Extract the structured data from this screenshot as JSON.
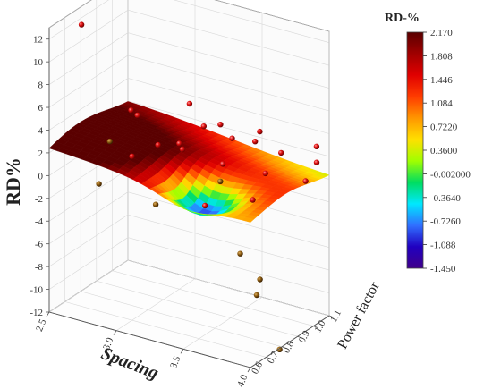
{
  "chart_data": {
    "type": "surface3d",
    "z_title": "RD%",
    "x_title": "Spacing",
    "y_title": "Power factor",
    "x_ticks": [
      "2.5",
      "3.0",
      "3.5",
      "4.0"
    ],
    "y_ticks": [
      "0.6",
      "0.7",
      "0.8",
      "0.9",
      "1.0",
      "1.1"
    ],
    "z_ticks": [
      "12",
      "10",
      "8",
      "6",
      "4",
      "2",
      "0",
      "-2",
      "-4",
      "-6",
      "-8",
      "-10",
      "-12"
    ],
    "xlim": [
      2.5,
      4.0
    ],
    "ylim": [
      0.6,
      1.1
    ],
    "zlim": [
      -12,
      13
    ],
    "legend": {
      "title": "RD-%",
      "labels": [
        "2.170",
        "1.808",
        "1.446",
        "1.084",
        "0.7220",
        "0.3600",
        "-0.002000",
        "-0.3640",
        "-0.7260",
        "-1.088",
        "-1.450"
      ],
      "colors": [
        "#5a0000",
        "#a00000",
        "#e00000",
        "#ff3c00",
        "#ff9600",
        "#ffe000",
        "#a0ff00",
        "#00dd60",
        "#00e8ff",
        "#3070ff",
        "#2000c0",
        "#40008a"
      ]
    },
    "grid": true,
    "points": [
      {
        "spacing": 2.6,
        "pf": 0.72,
        "rd": 12.5
      },
      {
        "spacing": 3.1,
        "pf": 0.78,
        "rd": 3.0
      },
      {
        "spacing": 2.7,
        "pf": 0.95,
        "rd": 3.2
      },
      {
        "spacing": 2.9,
        "pf": 0.82,
        "rd": 4.6
      },
      {
        "spacing": 3.0,
        "pf": 0.7,
        "rd": 2.4
      },
      {
        "spacing": 3.3,
        "pf": 0.9,
        "rd": 4.2
      },
      {
        "spacing": 3.6,
        "pf": 0.75,
        "rd": 6.7
      },
      {
        "spacing": 3.8,
        "pf": 0.8,
        "rd": 5.4
      },
      {
        "spacing": 3.9,
        "pf": 0.7,
        "rd": 1.5
      },
      {
        "spacing": 3.4,
        "pf": 0.92,
        "rd": -0.5
      },
      {
        "spacing": 3.0,
        "pf": 1.0,
        "rd": 0.8
      },
      {
        "spacing": 2.8,
        "pf": 0.66,
        "rd": -0.3
      },
      {
        "spacing": 3.7,
        "pf": 1.05,
        "rd": 1.8
      },
      {
        "spacing": 4.0,
        "pf": 0.95,
        "rd": 1.2
      },
      {
        "spacing": 3.5,
        "pf": 0.85,
        "rd": 2.0
      },
      {
        "spacing": 3.2,
        "pf": 0.68,
        "rd": -1.0
      },
      {
        "spacing": 3.9,
        "pf": 0.62,
        "rd": -2.5
      },
      {
        "spacing": 4.0,
        "pf": 0.66,
        "rd": -4.8
      },
      {
        "spacing": 4.0,
        "pf": 0.64,
        "rd": -6.0
      },
      {
        "spacing": 3.9,
        "pf": 0.78,
        "rd": 3.1
      },
      {
        "spacing": 2.6,
        "pf": 0.9,
        "rd": 0.6
      },
      {
        "spacing": 3.3,
        "pf": 1.08,
        "rd": 1.5
      },
      {
        "spacing": 3.6,
        "pf": 1.0,
        "rd": 3.8
      },
      {
        "spacing": 3.45,
        "pf": 0.78,
        "rd": -1.2
      },
      {
        "spacing": 4.0,
        "pf": 1.02,
        "rd": 3.6
      },
      {
        "spacing": 4.2,
        "pf": 0.85,
        "rd": 4.4
      },
      {
        "spacing": 3.1,
        "pf": 0.98,
        "rd": 4.8
      },
      {
        "spacing": 4.1,
        "pf": 0.7,
        "rd": -11.0
      },
      {
        "spacing": 3.2,
        "pf": 0.85,
        "rd": 2.3
      }
    ]
  }
}
